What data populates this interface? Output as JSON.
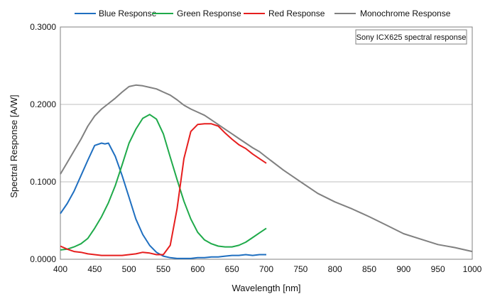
{
  "chart_data": {
    "type": "line",
    "xlabel": "Wavelength [nm]",
    "ylabel": "Spectral Response [A/W]",
    "xlim": [
      400,
      1000
    ],
    "ylim": [
      0,
      0.3
    ],
    "x_ticks": [
      400,
      450,
      500,
      550,
      600,
      650,
      700,
      750,
      800,
      850,
      900,
      950,
      1000
    ],
    "x_tick_labels": [
      "400",
      "450",
      "500",
      "550",
      "600",
      "650",
      "700",
      "750",
      "800",
      "850",
      "900",
      "950",
      "1000"
    ],
    "y_ticks": [
      0,
      0.1,
      0.2,
      0.3
    ],
    "y_tick_labels": [
      "0.0000",
      "0.1000",
      "0.2000",
      "0.3000"
    ],
    "grid": "horizontal",
    "legend_position": "top",
    "annotation": "Sony ICX625 spectral response",
    "series": [
      {
        "name": "Blue Response",
        "color": "#1f6fc0",
        "points": [
          [
            400,
            0.059
          ],
          [
            410,
            0.072
          ],
          [
            420,
            0.088
          ],
          [
            430,
            0.108
          ],
          [
            440,
            0.128
          ],
          [
            450,
            0.147
          ],
          [
            460,
            0.15
          ],
          [
            465,
            0.149
          ],
          [
            470,
            0.15
          ],
          [
            480,
            0.133
          ],
          [
            490,
            0.108
          ],
          [
            500,
            0.08
          ],
          [
            510,
            0.052
          ],
          [
            520,
            0.032
          ],
          [
            530,
            0.018
          ],
          [
            540,
            0.009
          ],
          [
            550,
            0.004
          ],
          [
            560,
            0.002
          ],
          [
            570,
            0.001
          ],
          [
            580,
            0.001
          ],
          [
            590,
            0.001
          ],
          [
            600,
            0.002
          ],
          [
            610,
            0.002
          ],
          [
            620,
            0.003
          ],
          [
            630,
            0.003
          ],
          [
            640,
            0.004
          ],
          [
            650,
            0.005
          ],
          [
            660,
            0.005
          ],
          [
            670,
            0.006
          ],
          [
            680,
            0.005
          ],
          [
            690,
            0.006
          ],
          [
            700,
            0.006
          ]
        ]
      },
      {
        "name": "Green Response",
        "color": "#1faa4a",
        "points": [
          [
            400,
            0.012
          ],
          [
            410,
            0.013
          ],
          [
            420,
            0.016
          ],
          [
            430,
            0.02
          ],
          [
            440,
            0.027
          ],
          [
            450,
            0.04
          ],
          [
            460,
            0.055
          ],
          [
            470,
            0.073
          ],
          [
            480,
            0.095
          ],
          [
            490,
            0.122
          ],
          [
            500,
            0.15
          ],
          [
            510,
            0.168
          ],
          [
            520,
            0.182
          ],
          [
            530,
            0.187
          ],
          [
            540,
            0.181
          ],
          [
            550,
            0.162
          ],
          [
            560,
            0.132
          ],
          [
            570,
            0.103
          ],
          [
            580,
            0.075
          ],
          [
            590,
            0.052
          ],
          [
            600,
            0.035
          ],
          [
            610,
            0.025
          ],
          [
            620,
            0.02
          ],
          [
            630,
            0.017
          ],
          [
            640,
            0.016
          ],
          [
            650,
            0.016
          ],
          [
            660,
            0.018
          ],
          [
            670,
            0.022
          ],
          [
            680,
            0.028
          ],
          [
            690,
            0.034
          ],
          [
            700,
            0.04
          ]
        ]
      },
      {
        "name": "Red Response",
        "color": "#e61e1e",
        "points": [
          [
            400,
            0.017
          ],
          [
            410,
            0.013
          ],
          [
            420,
            0.01
          ],
          [
            430,
            0.009
          ],
          [
            440,
            0.007
          ],
          [
            450,
            0.006
          ],
          [
            460,
            0.005
          ],
          [
            470,
            0.005
          ],
          [
            480,
            0.005
          ],
          [
            490,
            0.005
          ],
          [
            500,
            0.006
          ],
          [
            510,
            0.007
          ],
          [
            520,
            0.009
          ],
          [
            530,
            0.008
          ],
          [
            540,
            0.006
          ],
          [
            550,
            0.006
          ],
          [
            560,
            0.018
          ],
          [
            570,
            0.065
          ],
          [
            580,
            0.13
          ],
          [
            590,
            0.165
          ],
          [
            600,
            0.174
          ],
          [
            610,
            0.175
          ],
          [
            620,
            0.175
          ],
          [
            630,
            0.172
          ],
          [
            640,
            0.163
          ],
          [
            650,
            0.155
          ],
          [
            660,
            0.148
          ],
          [
            670,
            0.143
          ],
          [
            680,
            0.136
          ],
          [
            690,
            0.13
          ],
          [
            700,
            0.124
          ]
        ]
      },
      {
        "name": "Monochrome Response",
        "color": "#808080",
        "points": [
          [
            400,
            0.11
          ],
          [
            410,
            0.125
          ],
          [
            420,
            0.14
          ],
          [
            430,
            0.155
          ],
          [
            440,
            0.172
          ],
          [
            450,
            0.185
          ],
          [
            460,
            0.194
          ],
          [
            470,
            0.201
          ],
          [
            480,
            0.208
          ],
          [
            490,
            0.216
          ],
          [
            500,
            0.223
          ],
          [
            510,
            0.225
          ],
          [
            520,
            0.224
          ],
          [
            530,
            0.222
          ],
          [
            540,
            0.22
          ],
          [
            550,
            0.216
          ],
          [
            560,
            0.212
          ],
          [
            570,
            0.206
          ],
          [
            580,
            0.199
          ],
          [
            590,
            0.194
          ],
          [
            600,
            0.19
          ],
          [
            610,
            0.186
          ],
          [
            620,
            0.18
          ],
          [
            630,
            0.174
          ],
          [
            640,
            0.168
          ],
          [
            650,
            0.162
          ],
          [
            660,
            0.156
          ],
          [
            670,
            0.15
          ],
          [
            680,
            0.144
          ],
          [
            690,
            0.139
          ],
          [
            700,
            0.132
          ],
          [
            725,
            0.115
          ],
          [
            750,
            0.1
          ],
          [
            775,
            0.085
          ],
          [
            800,
            0.074
          ],
          [
            825,
            0.065
          ],
          [
            850,
            0.055
          ],
          [
            875,
            0.044
          ],
          [
            900,
            0.033
          ],
          [
            925,
            0.026
          ],
          [
            950,
            0.019
          ],
          [
            975,
            0.015
          ],
          [
            1000,
            0.01
          ]
        ]
      }
    ]
  }
}
